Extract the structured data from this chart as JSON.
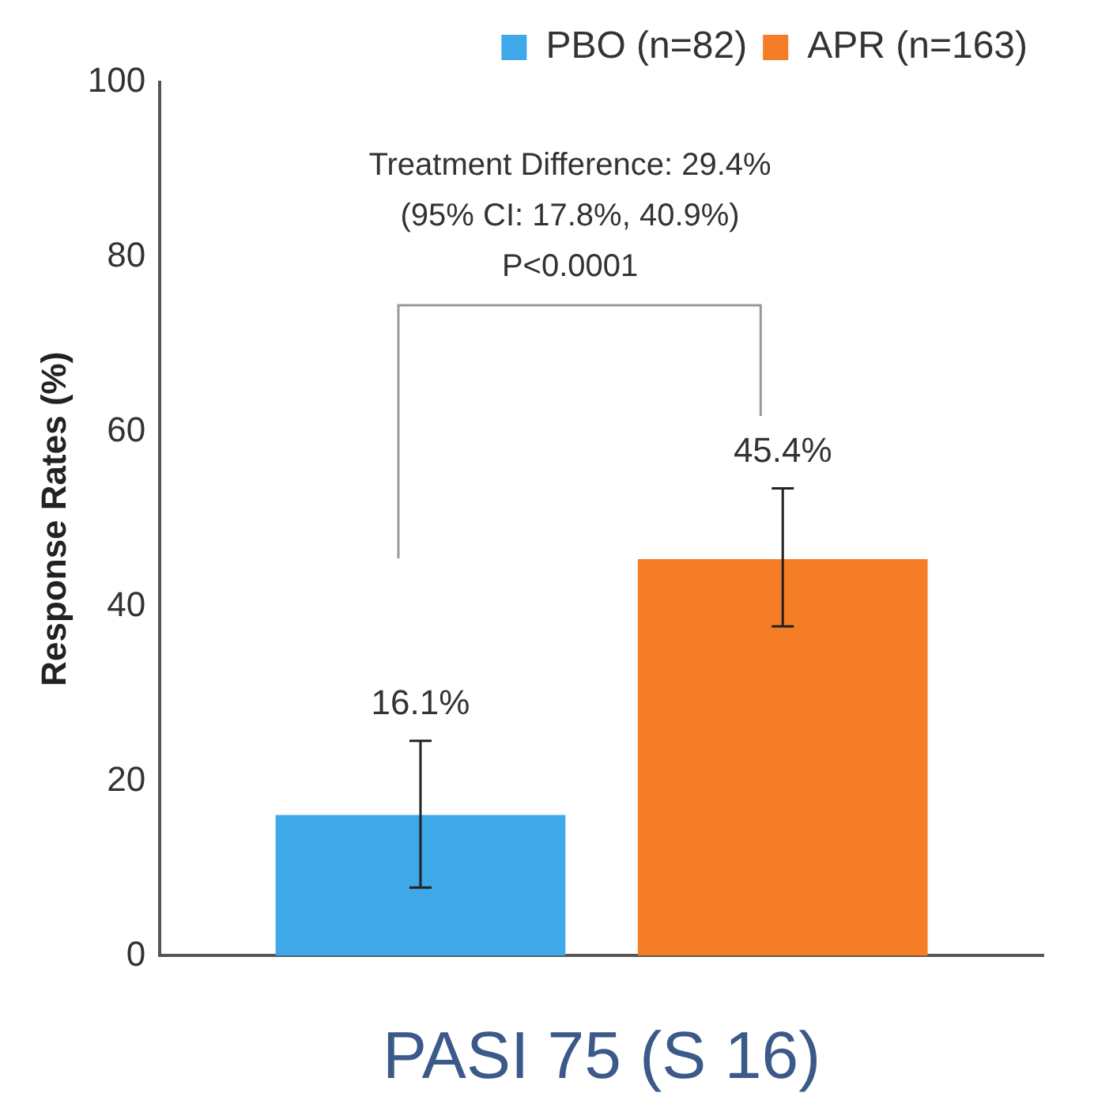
{
  "chart_data": {
    "type": "bar",
    "ylabel": "Response Rates (%)",
    "xlabel": "PASI 75 (S 16)",
    "categories": [
      null
    ],
    "series": [
      {
        "name": "PBO (n=82)",
        "color": "#3ea8e8",
        "values": [
          16.1
        ],
        "errors": [
          [
            7.8,
            24.6
          ]
        ],
        "value_labels": [
          "16.1%"
        ]
      },
      {
        "name": "APR (n=163)",
        "color": "#f47d25",
        "values": [
          45.4
        ],
        "errors": [
          [
            37.7,
            53.5
          ]
        ],
        "value_labels": [
          "45.4%"
        ]
      }
    ],
    "ylim": [
      0,
      100
    ],
    "yticks": [
      0,
      20,
      40,
      60,
      80,
      100
    ],
    "grid": false,
    "legend": "top",
    "annotations": [
      "Treatment Difference: 29.4%",
      "(95% CI: 17.8%, 40.9%)",
      "P<0.0001"
    ]
  }
}
